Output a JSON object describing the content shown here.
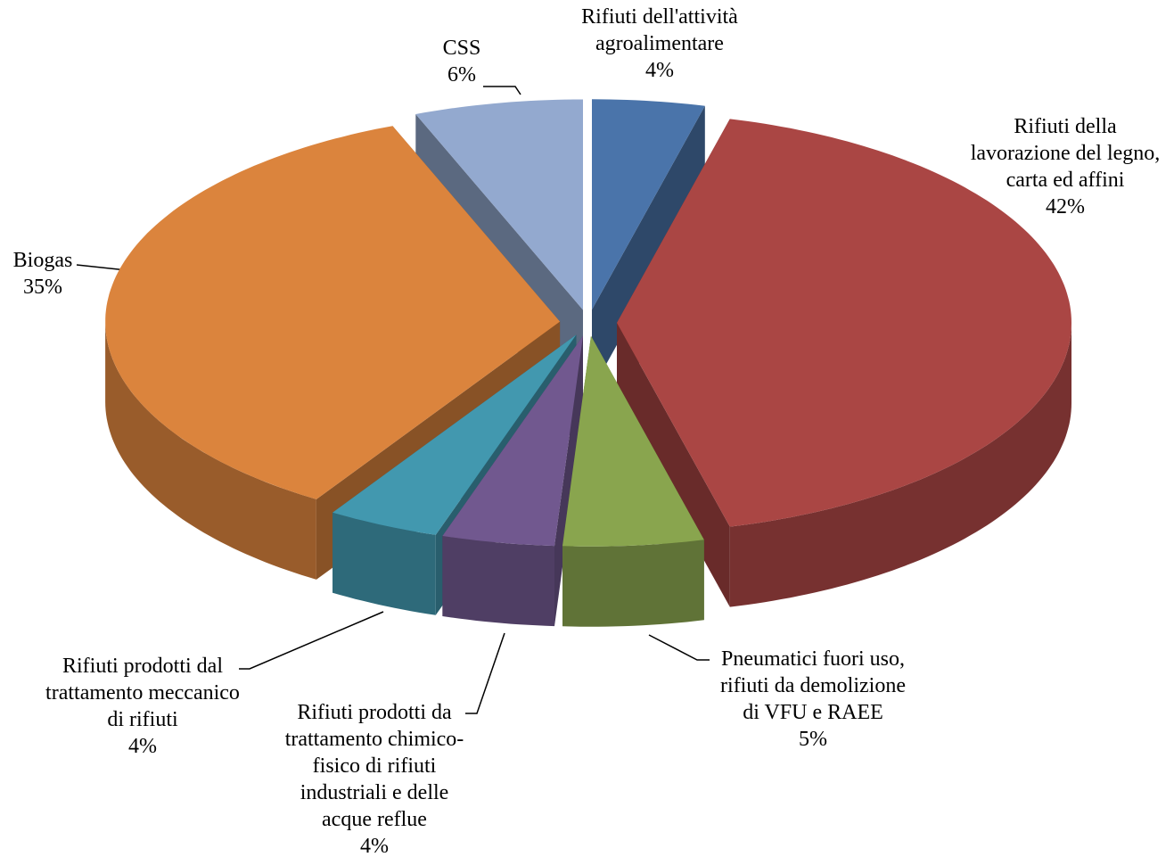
{
  "chart_data": {
    "type": "pie3d",
    "categories": [
      [
        "Rifiuti dell'attività",
        "agroalimentare"
      ],
      [
        "Rifiuti della",
        "lavorazione del legno,",
        "carta ed affini"
      ],
      [
        "Pneumatici fuori uso,",
        "rifiuti da demolizione",
        "di VFU e RAEE"
      ],
      [
        "Rifiuti prodotti da",
        "trattamento chimico-",
        "fisico di rifiuti",
        "industriali e delle",
        "acque reflue"
      ],
      [
        "Rifiuti prodotti dal",
        "trattamento meccanico",
        "di rifiuti"
      ],
      [
        "Biogas"
      ],
      [
        "CSS"
      ]
    ],
    "values": [
      4,
      42,
      5,
      4,
      4,
      35,
      6
    ],
    "value_labels": [
      "4%",
      "42%",
      "5%",
      "4%",
      "4%",
      "35%",
      "6%"
    ],
    "colors": [
      "#4a74aa",
      "#aa4644",
      "#89a54e",
      "#71588f",
      "#4298af",
      "#db843d",
      "#93a9cf"
    ]
  }
}
